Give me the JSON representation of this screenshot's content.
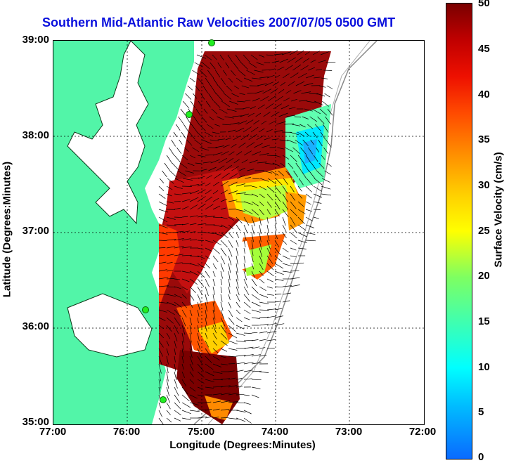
{
  "title": "Southern Mid-Atlantic Raw Velocities 2007/07/05 0500 GMT",
  "axes": {
    "xlabel": "Longitude (Degrees:Minutes)",
    "ylabel": "Latitude (Degrees:Minutes)",
    "xticks": [
      "77:00",
      "76:00",
      "75:00",
      "74:00",
      "73:00",
      "72:00"
    ],
    "yticks": [
      "39:00",
      "38:00",
      "37:00",
      "36:00",
      "35:00"
    ]
  },
  "colorbar": {
    "label": "Surface Velocity (cm/s)",
    "ticks": [
      "50",
      "45",
      "40",
      "35",
      "30",
      "25",
      "20",
      "15",
      "10",
      "5",
      "0"
    ],
    "range": [
      0,
      50
    ]
  },
  "colors": {
    "title": "#0a10dd",
    "land": "#52f5a8",
    "water": "#ffffff",
    "station": "#22ee22"
  },
  "stations": [
    "radar-station-1",
    "radar-station-2",
    "radar-station-3",
    "radar-station-4"
  ]
}
